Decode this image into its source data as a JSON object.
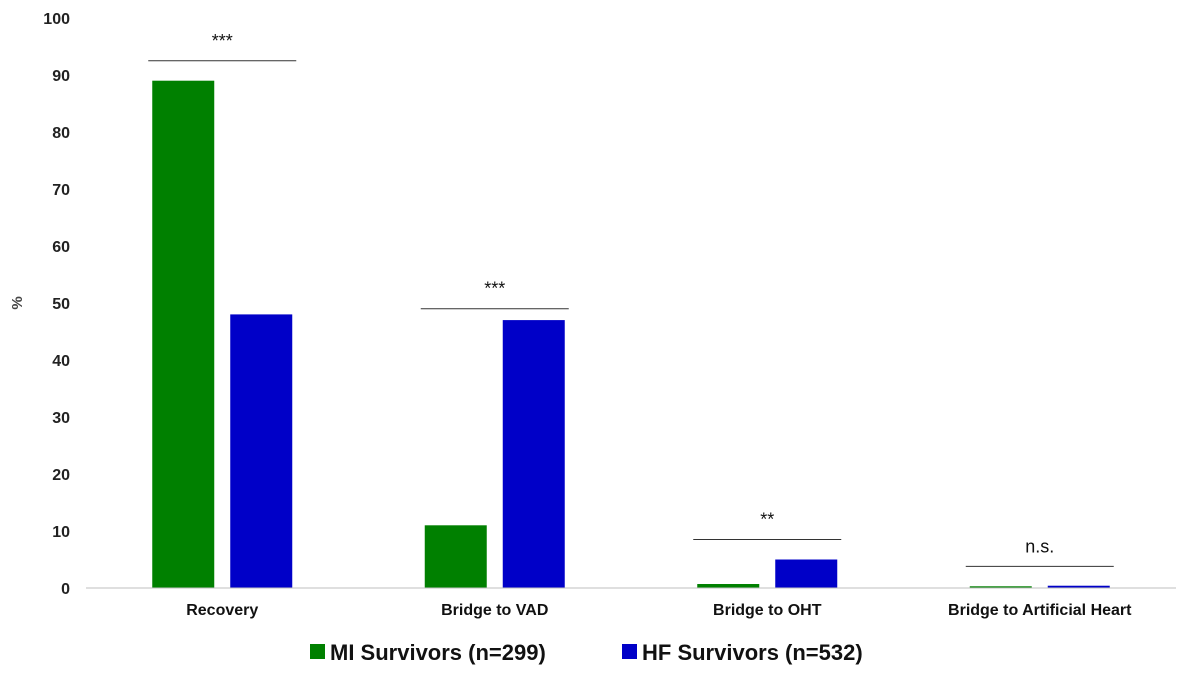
{
  "chart_data": {
    "type": "bar",
    "title": "",
    "xlabel": "",
    "ylabel": "%",
    "ylim": [
      0,
      100
    ],
    "yticks": [
      0,
      10,
      20,
      30,
      40,
      50,
      60,
      70,
      80,
      90,
      100
    ],
    "grid": false,
    "legend_position": "bottom",
    "categories": [
      "Recovery",
      "Bridge to VAD",
      "Bridge to OHT",
      "Bridge to Artificial Heart"
    ],
    "series": [
      {
        "name": "MI Survivors (n=299)",
        "color": "#008000",
        "values": [
          89,
          11,
          0.7,
          0.3
        ]
      },
      {
        "name": "HF Survivors (n=532)",
        "color": "#0000c8",
        "values": [
          48,
          47,
          5,
          0.4
        ]
      }
    ],
    "annotations": [
      {
        "category_index": 0,
        "label": "***",
        "y": 92.5
      },
      {
        "category_index": 1,
        "label": "***",
        "y": 49
      },
      {
        "category_index": 2,
        "label": "**",
        "y": 8.5
      },
      {
        "category_index": 3,
        "label": "n.s.",
        "y": 3.8
      }
    ]
  }
}
